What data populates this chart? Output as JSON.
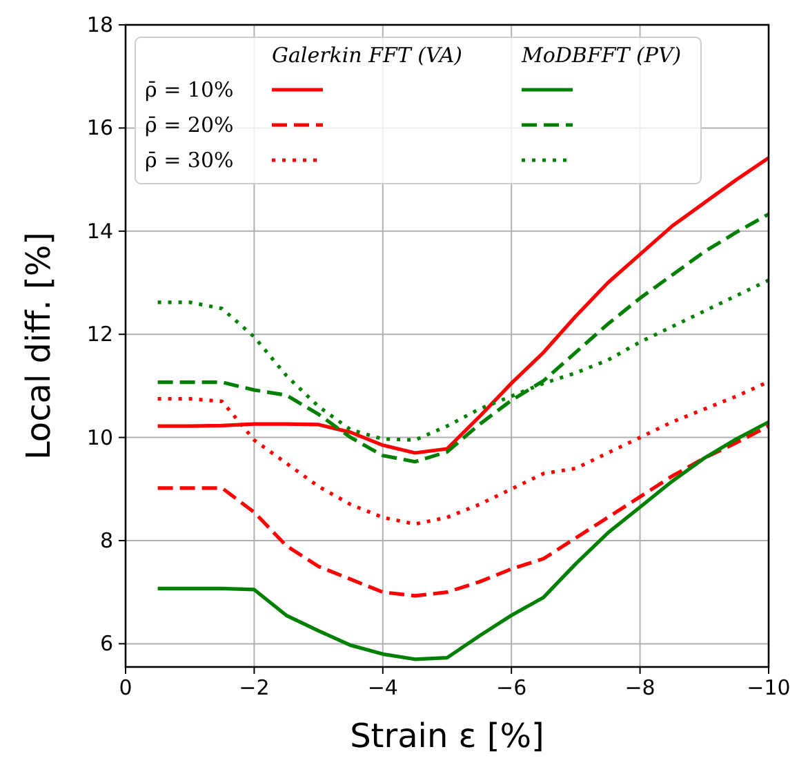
{
  "chart_data": {
    "type": "line",
    "xlabel": "Strain ε [%]",
    "ylabel": "Local diff. [%]",
    "x": [
      -0.5,
      -1,
      -1.5,
      -2,
      -2.5,
      -3,
      -3.5,
      -4,
      -4.5,
      -5,
      -5.5,
      -6,
      -6.5,
      -7,
      -7.5,
      -8,
      -8.5,
      -9,
      -9.5,
      -10
    ],
    "series": [
      {
        "name": "ρ̄ = 10%",
        "color": "#ff0000",
        "line_style": "solid",
        "values": [
          10.22,
          10.22,
          10.23,
          10.26,
          10.26,
          10.25,
          10.1,
          9.85,
          9.7,
          9.78,
          10.4,
          11.05,
          11.65,
          12.35,
          13.0,
          13.55,
          14.1,
          14.55,
          15.0,
          15.42
        ]
      },
      {
        "name": "ρ̄ = 20%",
        "color": "#ff0000",
        "line_style": "dashed",
        "values": [
          9.02,
          9.02,
          9.02,
          8.55,
          7.9,
          7.5,
          7.25,
          7.0,
          6.93,
          7.0,
          7.2,
          7.45,
          7.65,
          8.05,
          8.45,
          8.85,
          9.25,
          9.6,
          9.9,
          10.22
        ]
      },
      {
        "name": "ρ̄ = 30%",
        "color": "#ff0000",
        "line_style": "dotted",
        "values": [
          10.75,
          10.75,
          10.7,
          9.95,
          9.5,
          9.05,
          8.7,
          8.45,
          8.32,
          8.45,
          8.7,
          9.0,
          9.3,
          9.4,
          9.7,
          10.0,
          10.3,
          10.55,
          10.8,
          11.08
        ]
      },
      {
        "color": "#008000",
        "line_style": "solid",
        "values": [
          7.07,
          7.07,
          7.07,
          7.05,
          6.55,
          6.25,
          5.97,
          5.8,
          5.7,
          5.73,
          6.15,
          6.55,
          6.9,
          7.55,
          8.15,
          8.65,
          9.15,
          9.6,
          9.97,
          10.3
        ]
      },
      {
        "color": "#008000",
        "line_style": "dashed",
        "values": [
          11.07,
          11.07,
          11.07,
          10.92,
          10.82,
          10.45,
          10.0,
          9.65,
          9.53,
          9.72,
          10.25,
          10.72,
          11.1,
          11.65,
          12.2,
          12.7,
          13.15,
          13.6,
          13.98,
          14.33
        ]
      },
      {
        "color": "#008000",
        "line_style": "dotted",
        "values": [
          12.62,
          12.62,
          12.5,
          11.95,
          11.2,
          10.6,
          10.15,
          9.97,
          9.95,
          10.22,
          10.55,
          10.8,
          11.05,
          11.25,
          11.5,
          11.85,
          12.15,
          12.45,
          12.75,
          13.05
        ]
      }
    ],
    "annotations": [
      "Galerkin FFT (VA)",
      "MoDBFFT (PV)"
    ],
    "xlim": [
      0,
      -10
    ],
    "xticks": [
      0,
      {
        "value": -2,
        "label": "−2"
      },
      {
        "value": -4,
        "label": "−4"
      },
      {
        "value": -6,
        "label": "−6"
      },
      {
        "value": -8,
        "label": "−8"
      },
      {
        "value": -10,
        "label": "−10"
      }
    ],
    "ylim": [
      5.55,
      18
    ],
    "yticks": [
      6,
      8,
      10,
      12,
      14,
      16,
      18
    ],
    "grid": true,
    "legend": "top left"
  }
}
